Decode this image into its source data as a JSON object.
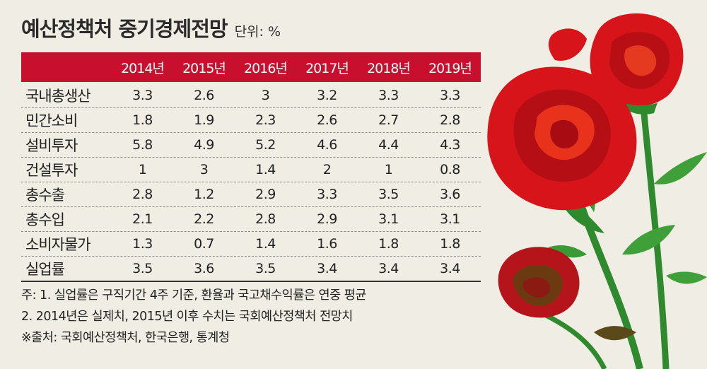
{
  "title": "예산정책처 중기경제전망",
  "unit": "단위: %",
  "years": [
    "2014년",
    "2015년",
    "2016년",
    "2017년",
    "2018년",
    "2019년"
  ],
  "rows": [
    {
      "label": "국내총생산",
      "values": [
        "3.3",
        "2.6",
        "3",
        "3.2",
        "3.3",
        "3.3"
      ]
    },
    {
      "label": "민간소비",
      "values": [
        "1.8",
        "1.9",
        "2.3",
        "2.6",
        "2.7",
        "2.8"
      ]
    },
    {
      "label": "설비투자",
      "values": [
        "5.8",
        "4.9",
        "5.2",
        "4.6",
        "4.4",
        "4.3"
      ]
    },
    {
      "label": "건설투자",
      "values": [
        "1",
        "3",
        "1.4",
        "2",
        "1",
        "0.8"
      ]
    },
    {
      "label": "총수출",
      "values": [
        "2.8",
        "1.2",
        "2.9",
        "3.3",
        "3.5",
        "3.6"
      ]
    },
    {
      "label": "총수입",
      "values": [
        "2.1",
        "2.2",
        "2.8",
        "2.9",
        "3.1",
        "3.1"
      ]
    },
    {
      "label": "소비자물가",
      "values": [
        "1.3",
        "0.7",
        "1.4",
        "1.6",
        "1.8",
        "1.8"
      ]
    },
    {
      "label": "실업률",
      "values": [
        "3.5",
        "3.6",
        "3.5",
        "3.4",
        "3.4",
        "3.4"
      ]
    }
  ],
  "notes": [
    "주: 1. 실업률은 구직기간 4주 기준, 환율과 국고채수익률은 연중 평균",
    "2. 2014년은 실제치, 2015년 이후 수치는 국회예산정책처 전망치",
    "※출처: 국회예산정책처, 한국은행, 통계청"
  ],
  "colors": {
    "header": "#c8102e",
    "background": "#f0ede4",
    "rose": "#d7141a",
    "stem": "#2f8a2e"
  }
}
